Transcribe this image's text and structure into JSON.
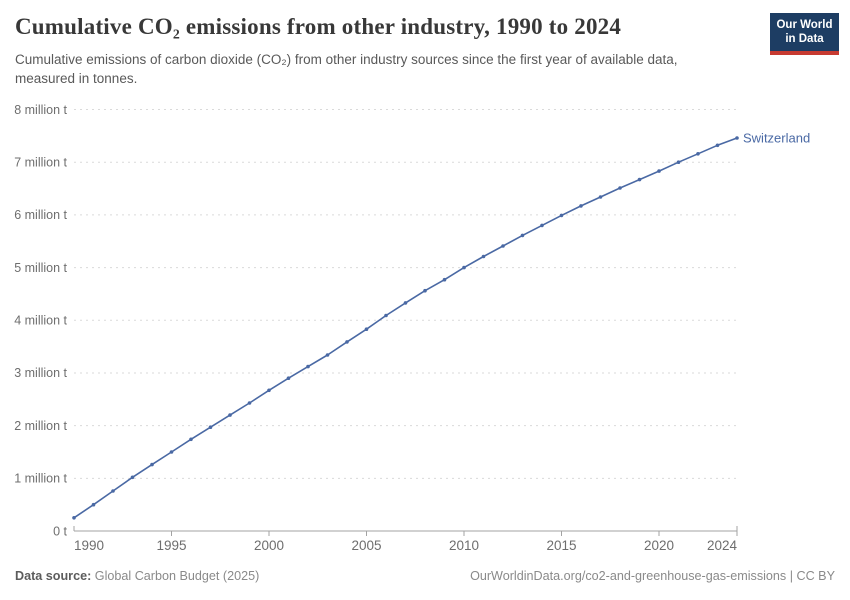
{
  "header": {
    "title": "Cumulative CO₂ emissions from other industry, 1990 to 2024",
    "subtitle_line1": "Cumulative emissions of carbon dioxide (CO₂) from other industry sources since the first year of available data,",
    "subtitle_line2": "measured in tonnes.",
    "logo_line1": "Our World",
    "logo_line2": "in Data"
  },
  "chart_data": {
    "type": "line",
    "title": "Cumulative CO₂ emissions from other industry, 1990 to 2024",
    "xlabel": "",
    "ylabel": "",
    "unit": "million tonnes",
    "xlim": [
      1990,
      2024
    ],
    "ylim": [
      0,
      8
    ],
    "grid": "horizontal-dashed",
    "legend_position": "line-end-label",
    "x_ticks": [
      1990,
      1995,
      2000,
      2005,
      2010,
      2015,
      2020,
      2024
    ],
    "y_ticks": [
      {
        "value": 0,
        "label": "0 t"
      },
      {
        "value": 1,
        "label": "1 million t"
      },
      {
        "value": 2,
        "label": "2 million t"
      },
      {
        "value": 3,
        "label": "3 million t"
      },
      {
        "value": 4,
        "label": "4 million t"
      },
      {
        "value": 5,
        "label": "5 million t"
      },
      {
        "value": 6,
        "label": "6 million t"
      },
      {
        "value": 7,
        "label": "7 million t"
      },
      {
        "value": 8,
        "label": "8 million t"
      }
    ],
    "series": [
      {
        "name": "Switzerland",
        "color": "#4a69a4",
        "x": [
          1990,
          1991,
          1992,
          1993,
          1994,
          1995,
          1996,
          1997,
          1998,
          1999,
          2000,
          2001,
          2002,
          2003,
          2004,
          2005,
          2006,
          2007,
          2008,
          2009,
          2010,
          2011,
          2012,
          2013,
          2014,
          2015,
          2016,
          2017,
          2018,
          2019,
          2020,
          2021,
          2022,
          2023,
          2024
        ],
        "values": [
          0.25,
          0.5,
          0.76,
          1.02,
          1.26,
          1.5,
          1.74,
          1.97,
          2.2,
          2.43,
          2.67,
          2.9,
          3.12,
          3.34,
          3.59,
          3.83,
          4.09,
          4.33,
          4.56,
          4.77,
          5.0,
          5.21,
          5.41,
          5.61,
          5.8,
          5.99,
          6.17,
          6.34,
          6.51,
          6.67,
          6.83,
          7.0,
          7.16,
          7.32,
          7.46
        ]
      }
    ]
  },
  "colors": {
    "line": "#4a69a4",
    "grid": "#dadada",
    "axis": "#a3a3a3",
    "tick_label": "#6e6e6e",
    "logo_bg": "#1d3d63",
    "logo_red": "#c73a31"
  },
  "footer": {
    "source_label": "Data source:",
    "source_value": "Global Carbon Budget (2025)",
    "credit": "OurWorldinData.org/co2-and-greenhouse-gas-emissions | CC BY"
  }
}
